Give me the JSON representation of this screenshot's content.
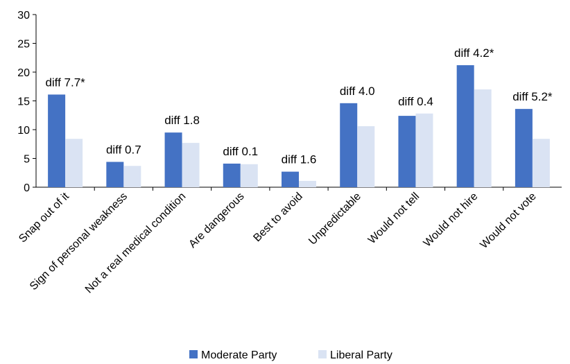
{
  "chart_data": {
    "type": "bar",
    "categories": [
      "Snap out of it",
      "Sign of personal weakness",
      "Not a real medical condition",
      "Are dangerous",
      "Best to avoid",
      "Unpredictable",
      "Would not tell",
      "Would not hire",
      "Would not vote"
    ],
    "series": [
      {
        "name": "Moderate Party",
        "color": "#4472C4",
        "values": [
          16.1,
          4.4,
          9.5,
          4.1,
          2.7,
          14.6,
          12.4,
          21.2,
          13.6
        ]
      },
      {
        "name": "Liberal Party",
        "color": "#DAE3F3",
        "values": [
          8.4,
          3.7,
          7.7,
          4.0,
          1.1,
          10.6,
          12.8,
          17.0,
          8.4
        ]
      }
    ],
    "annotations": [
      "diff 7.7*",
      "diff 0.7",
      "diff 1.8",
      "diff 0.1",
      "diff 1.6",
      "diff 4.0",
      "diff 0.4",
      "diff 4.2*",
      "diff 5.2*"
    ],
    "yticks": [
      "0",
      "5",
      "10",
      "15",
      "20",
      "25",
      "30"
    ],
    "ylim": [
      0,
      30
    ],
    "title": "",
    "xlabel": "",
    "ylabel": "",
    "grid": false,
    "legend": "bottom"
  }
}
